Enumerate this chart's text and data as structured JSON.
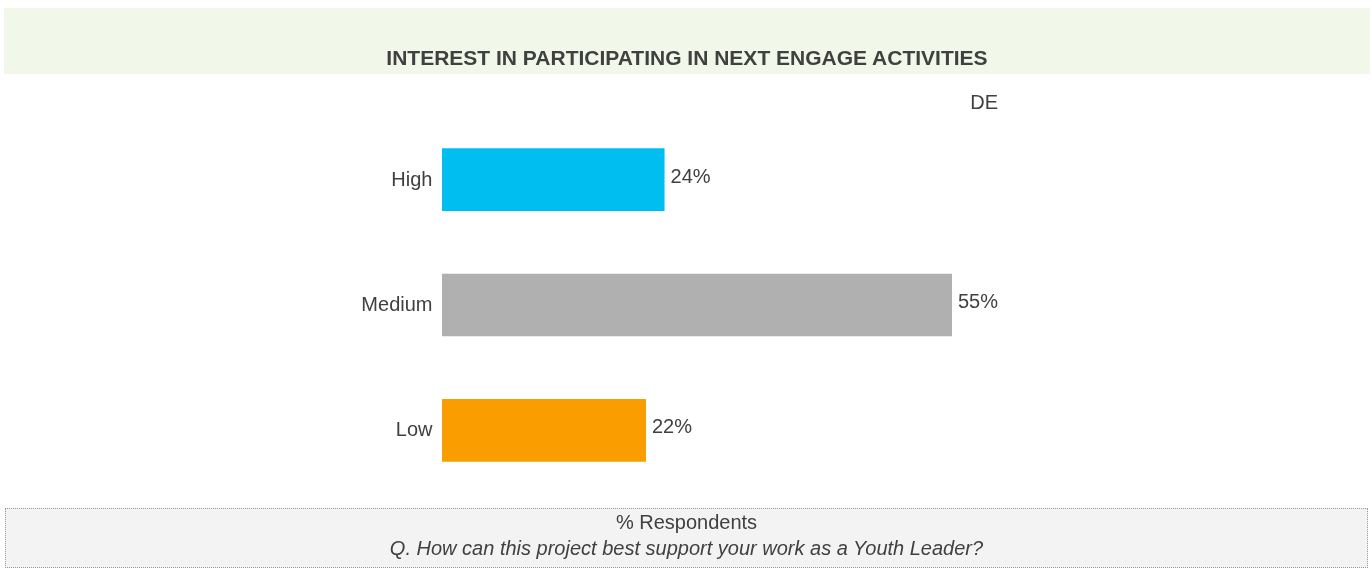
{
  "chart_data": {
    "type": "bar",
    "orientation": "horizontal",
    "title": "INTEREST IN PARTICIPATING IN NEXT ENGAGE ACTIVITIES",
    "subtitle": "DE",
    "categories": [
      "High",
      "Medium",
      "Low"
    ],
    "values": [
      24,
      55,
      22
    ],
    "colors": [
      "#00bef0",
      "#b0b0b0",
      "#f99d00"
    ],
    "value_labels": [
      "24%",
      "55%",
      "22%"
    ],
    "annotations": [
      "% Respondents",
      "Q. How can this project best support your work as a Youth Leader?"
    ]
  }
}
